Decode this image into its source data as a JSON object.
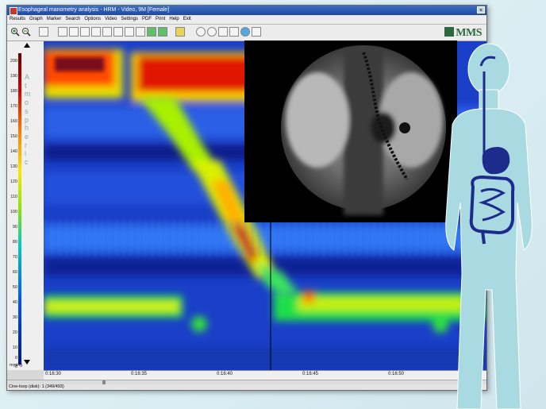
{
  "window": {
    "title": "Esophageal manometry analysis - HRM - Video, 9M [Female]",
    "close_glyph": "×"
  },
  "menu": [
    "Results",
    "Graph",
    "Marker",
    "Search",
    "Options",
    "Video",
    "Settings",
    "PDF",
    "Print",
    "Help",
    "Exit"
  ],
  "logo": {
    "text": "MMS",
    "color": "#2c6a3e"
  },
  "y_axis": {
    "unit": "mmHg",
    "ticks": [
      "200",
      "190",
      "180",
      "170",
      "160",
      "150",
      "140",
      "130",
      "120",
      "110",
      "100",
      "90",
      "80",
      "70",
      "60",
      "50",
      "40",
      "30",
      "20",
      "10",
      "0",
      "-8"
    ],
    "vertical_label": [
      "A",
      "t",
      "m",
      "o",
      "s",
      "p",
      "h",
      "e",
      "r",
      "i",
      "c"
    ]
  },
  "x_axis": {
    "ticks": [
      "0:16:30",
      "0:16:35",
      "0:16:40",
      "0:16:45",
      "0:16:50"
    ]
  },
  "status": {
    "text": "Cine-loop (disk): 1 (349/493)"
  },
  "icons": {
    "zoom_in": "zoom-in-icon",
    "zoom_out": "zoom-out-icon",
    "body": "digestive-system-body-icon"
  },
  "colors": {
    "plot_bg": "#1a3fc8",
    "body_fill": "#a9d9e1",
    "organ": "#1c2b8c"
  }
}
